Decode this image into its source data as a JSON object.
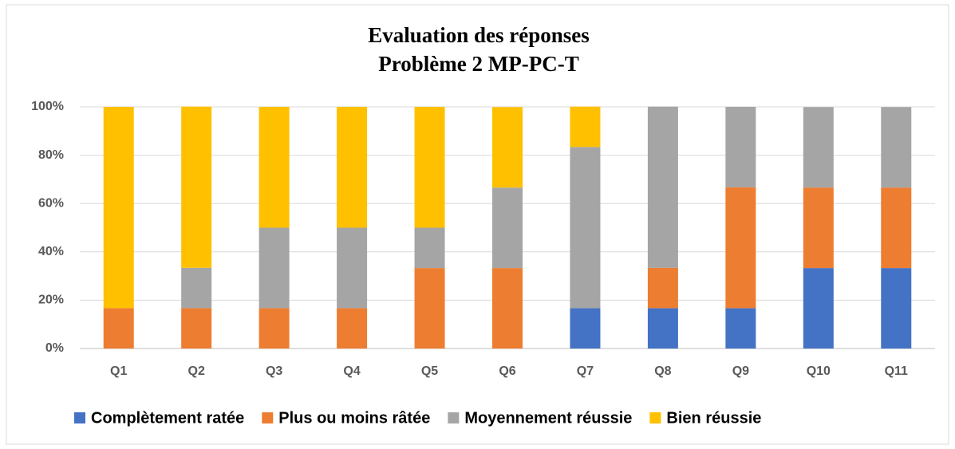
{
  "chart_data": {
    "type": "bar",
    "stacked": true,
    "title": "Evaluation des réponses",
    "subtitle": "Problème 2 MP-PC-T",
    "categories": [
      "Q1",
      "Q2",
      "Q3",
      "Q4",
      "Q5",
      "Q6",
      "Q7",
      "Q8",
      "Q9",
      "Q10",
      "Q11"
    ],
    "series": [
      {
        "name": "Complètement ratée",
        "color": "#4472c4",
        "values": [
          0,
          0,
          0,
          0,
          0,
          0,
          16.7,
          16.7,
          16.7,
          33.3,
          33.3
        ]
      },
      {
        "name": "Plus ou moins râtée",
        "color": "#ed7d31",
        "values": [
          16.7,
          16.7,
          16.7,
          16.7,
          33.3,
          33.3,
          0,
          16.7,
          50,
          33.3,
          33.3
        ]
      },
      {
        "name": "Moyennement réussie",
        "color": "#a5a5a5",
        "values": [
          0,
          16.7,
          33.3,
          33.3,
          16.7,
          33.3,
          66.7,
          66.7,
          33.3,
          33.3,
          33.3
        ]
      },
      {
        "name": "Bien réussie",
        "color": "#ffc000",
        "values": [
          83.3,
          66.7,
          50,
          50,
          50,
          33.3,
          16.7,
          0,
          0,
          0,
          0
        ]
      }
    ],
    "ylim": [
      0,
      100
    ],
    "yticks": [
      {
        "value": 0,
        "label": "0%"
      },
      {
        "value": 20,
        "label": "20%"
      },
      {
        "value": 40,
        "label": "40%"
      },
      {
        "value": 60,
        "label": "60%"
      },
      {
        "value": 80,
        "label": "80%"
      },
      {
        "value": 100,
        "label": "100%"
      }
    ],
    "grid": true,
    "legend": "bottom"
  }
}
